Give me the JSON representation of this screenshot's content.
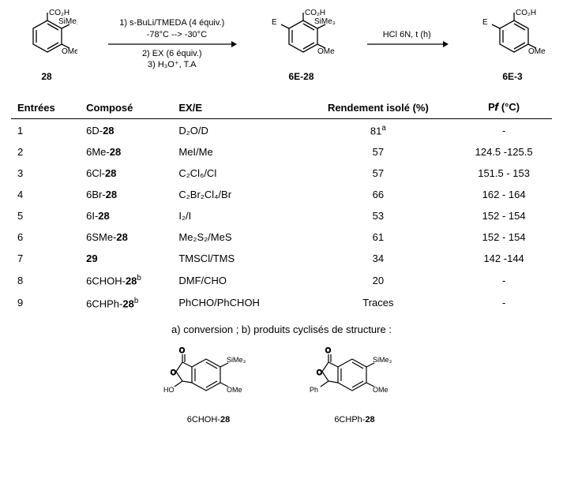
{
  "scheme": {
    "formula_co2h": "CO₂H",
    "formula_sime3": "SiMe₃",
    "formula_ome": "OMe",
    "formula_e": "E",
    "struct1_label": "28",
    "struct2_label": "6E-28",
    "struct3_label": "6E-3",
    "arrow1_top1": "1) s-BuLi/TMEDA (4 équiv.)",
    "arrow1_top2": "    -78°C --> -30°C",
    "arrow1_bot1": "2) EX (6 équiv.)",
    "arrow1_bot2": "3) H₃O⁺, T.A",
    "arrow2_top": "HCl 6N, t (h)"
  },
  "table": {
    "headers": [
      "Entrées",
      "Composé",
      "EX/E",
      "Rendement isolé (%)",
      "P𝒇 (°C)"
    ],
    "rows": [
      {
        "n": "1",
        "comp_pre": "6D-",
        "comp_bold": "28",
        "comp_post": "",
        "ex": "D₂O/D",
        "rend": "81",
        "rend_sup": "a",
        "pf": "-"
      },
      {
        "n": "2",
        "comp_pre": "6Me-",
        "comp_bold": "28",
        "comp_post": "",
        "ex": "MeI/Me",
        "rend": "57",
        "rend_sup": "",
        "pf": "124.5 -125.5"
      },
      {
        "n": "3",
        "comp_pre": "6Cl-",
        "comp_bold": "28",
        "comp_post": "",
        "ex": "C₂Cl₆/Cl",
        "rend": "57",
        "rend_sup": "",
        "pf": "151.5 - 153"
      },
      {
        "n": "4",
        "comp_pre": "6Br-",
        "comp_bold": "28",
        "comp_post": "",
        "ex": "C₂Br₂Cl₄/Br",
        "rend": "66",
        "rend_sup": "",
        "pf": "162 - 164"
      },
      {
        "n": "5",
        "comp_pre": "6I-",
        "comp_bold": "28",
        "comp_post": "",
        "ex": "I₂/I",
        "rend": "53",
        "rend_sup": "",
        "pf": "152 - 154"
      },
      {
        "n": "6",
        "comp_pre": "6SMe-",
        "comp_bold": "28",
        "comp_post": "",
        "ex": "Me₂S₂/MeS",
        "rend": "61",
        "rend_sup": "",
        "pf": "152 - 154"
      },
      {
        "n": "7",
        "comp_pre": "",
        "comp_bold": "29",
        "comp_post": "",
        "ex": "TMSCl/TMS",
        "rend": "34",
        "rend_sup": "",
        "pf": "142 -144"
      },
      {
        "n": "8",
        "comp_pre": "6CHOH-",
        "comp_bold": "28",
        "comp_post": "",
        "comp_sup": "b",
        "ex": "DMF/CHO",
        "rend": "20",
        "rend_sup": "",
        "pf": "-"
      },
      {
        "n": "9",
        "comp_pre": "6CHPh-",
        "comp_bold": "28",
        "comp_post": "",
        "comp_sup": "b",
        "ex": "PhCHO/PhCHOH",
        "rend": "Traces",
        "rend_sup": "",
        "pf": "-"
      }
    ]
  },
  "footnote": "a)   conversion ; b) produits cyclisés de structure :",
  "cycles": {
    "left_sub": "HO",
    "right_sub": "Ph",
    "sime3": "SiMe₃",
    "ome": "OMe",
    "left_label_pre": "6CHOH-",
    "left_label_bold": "28",
    "right_label_pre": "6CHPh-",
    "right_label_bold": "28"
  },
  "style": {
    "stroke": "#000000",
    "font": "Arial"
  }
}
